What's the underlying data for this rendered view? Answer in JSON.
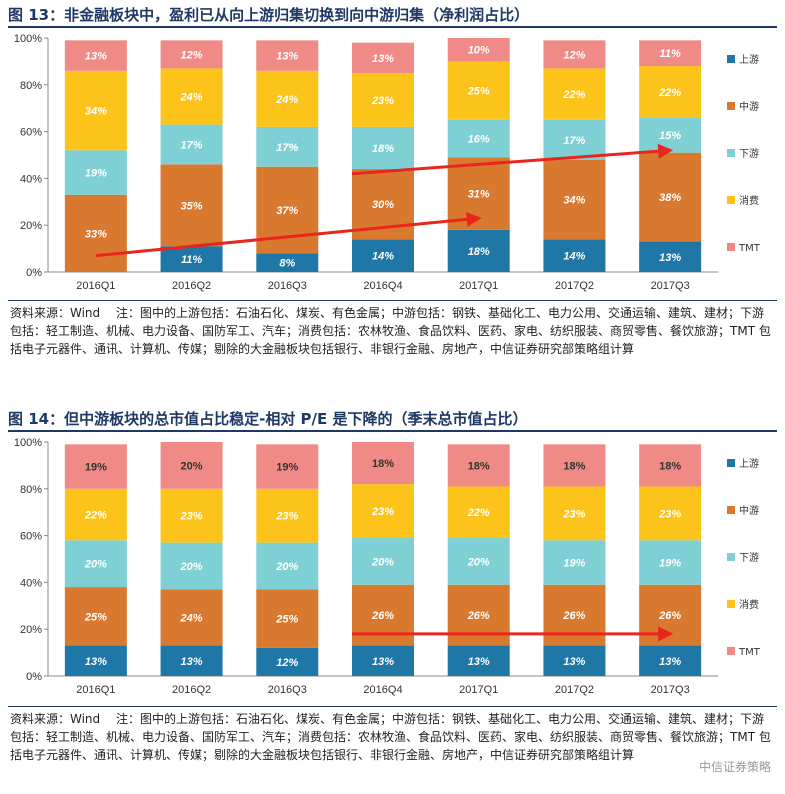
{
  "figures": [
    {
      "title": "图 13：非金融板块中，盈利已从向上游归集切换到向中游归集（净利润占比）",
      "source": "资料来源：Wind　 注：图中的上游包括：石油石化、煤炭、有色金属；中游包括：钢铁、基础化工、电力公用、交通运输、建筑、建材；下游包括：轻工制造、机械、电力设备、国防军工、汽车；消费包括：农林牧渔、食品饮料、医药、家电、纺织服装、商贸零售、餐饮旅游；TMT 包括电子元器件、通讯、计算机、传媒；剔除的大金融板块包括银行、非银行金融、房地产，中信证券研究部策略组计算"
    },
    {
      "title": "图 14：但中游板块的总市值占比稳定-相对 P/E 是下降的（季末总市值占比）",
      "source": "资料来源：Wind　 注：图中的上游包括：石油石化、煤炭、有色金属；中游包括：钢铁、基础化工、电力公用、交通运输、建筑、建材；下游包括：轻工制造、机械、电力设备、国防军工、汽车；消费包括：农林牧渔、食品饮料、医药、家电、纺织服装、商贸零售、餐饮旅游；TMT 包括电子元器件、通讯、计算机、传媒；剔除的大金融板块包括银行、非银行金融、房地产，中信证券研究部策略组计算"
    }
  ],
  "watermark": "中信证券策略",
  "colors": {
    "上游": "#1f77a8",
    "中游": "#d9782f",
    "下游": "#7fd0d4",
    "消费": "#fcc31b",
    "TMT": "#f08a86",
    "arrow": "#e8261d",
    "title": "#1f3864"
  },
  "chart_data": [
    {
      "type": "bar",
      "stacked": true,
      "categories": [
        "2016Q1",
        "2016Q2",
        "2016Q3",
        "2016Q4",
        "2017Q1",
        "2017Q2",
        "2017Q3"
      ],
      "ylim": [
        0,
        100
      ],
      "yticks": [
        "0%",
        "20%",
        "40%",
        "60%",
        "80%",
        "100%"
      ],
      "series": [
        {
          "name": "上游",
          "values": [
            0,
            11,
            8,
            14,
            18,
            14,
            13
          ],
          "labels": [
            "",
            "11%",
            "8%",
            "14%",
            "18%",
            "14%",
            "13%"
          ]
        },
        {
          "name": "中游",
          "values": [
            33,
            35,
            37,
            30,
            31,
            34,
            38
          ],
          "labels": [
            "33%",
            "35%",
            "37%",
            "30%",
            "31%",
            "34%",
            "38%"
          ]
        },
        {
          "name": "下游",
          "values": [
            19,
            17,
            17,
            18,
            16,
            17,
            15
          ],
          "labels": [
            "19%",
            "17%",
            "17%",
            "18%",
            "16%",
            "17%",
            "15%"
          ]
        },
        {
          "name": "消费",
          "values": [
            34,
            24,
            24,
            23,
            25,
            22,
            22
          ],
          "labels": [
            "34%",
            "24%",
            "24%",
            "23%",
            "25%",
            "22%",
            "22%"
          ]
        },
        {
          "name": "TMT",
          "values": [
            13,
            12,
            13,
            13,
            10,
            12,
            11
          ],
          "labels": [
            "13%",
            "12%",
            "13%",
            "13%",
            "10%",
            "12%",
            "11%"
          ]
        }
      ],
      "legend_position": "right",
      "grid": false,
      "label_style": "italic",
      "arrows": [
        {
          "from": [
            0,
            7
          ],
          "to": [
            4,
            23
          ]
        },
        {
          "from": [
            3,
            42
          ],
          "to": [
            6,
            52
          ]
        }
      ]
    },
    {
      "type": "bar",
      "stacked": true,
      "categories": [
        "2016Q1",
        "2016Q2",
        "2016Q3",
        "2016Q4",
        "2017Q1",
        "2017Q2",
        "2017Q3"
      ],
      "ylim": [
        0,
        100
      ],
      "yticks": [
        "0%",
        "20%",
        "40%",
        "60%",
        "80%",
        "100%"
      ],
      "series": [
        {
          "name": "上游",
          "values": [
            13,
            13,
            12,
            13,
            13,
            13,
            13
          ],
          "labels": [
            "13%",
            "13%",
            "12%",
            "13%",
            "13%",
            "13%",
            "13%"
          ]
        },
        {
          "name": "中游",
          "values": [
            25,
            24,
            25,
            26,
            26,
            26,
            26
          ],
          "labels": [
            "25%",
            "24%",
            "25%",
            "26%",
            "26%",
            "26%",
            "26%"
          ]
        },
        {
          "name": "下游",
          "values": [
            20,
            20,
            20,
            20,
            20,
            19,
            19
          ],
          "labels": [
            "20%",
            "20%",
            "20%",
            "20%",
            "20%",
            "19%",
            "19%"
          ]
        },
        {
          "name": "消费",
          "values": [
            22,
            23,
            23,
            23,
            22,
            23,
            23
          ],
          "labels": [
            "22%",
            "23%",
            "23%",
            "23%",
            "22%",
            "23%",
            "23%"
          ]
        },
        {
          "name": "TMT",
          "values": [
            19,
            20,
            19,
            18,
            18,
            18,
            18
          ],
          "labels": [
            "19%",
            "20%",
            "19%",
            "18%",
            "18%",
            "18%",
            "18%"
          ]
        }
      ],
      "legend_position": "right",
      "grid": false,
      "label_style": "mixed",
      "arrows": [
        {
          "from": [
            3,
            18
          ],
          "to": [
            6,
            18
          ]
        }
      ]
    }
  ]
}
